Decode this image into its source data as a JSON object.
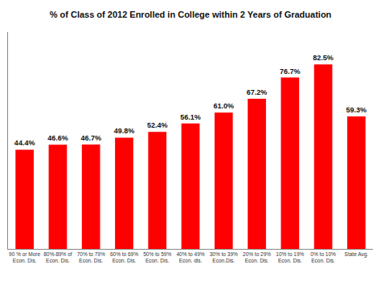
{
  "chart_data": {
    "type": "bar",
    "title": "% of Class of 2012 Enrolled in College within 2 Years of Graduation",
    "categories": [
      "90 % or More\nEcon. Dis.",
      "80%-89% of\nEcon. Dis.",
      "70% to 79%\nEcon. Dis.",
      "60% to 69%\nEcon. Dis.",
      "50% to 59%\nEcon. Dis.",
      "40% to 49%\nEcon. dis.",
      "30% to 39%\nEcon.Dis.",
      "20% to 29%\nEcon. Dis.",
      "10% to 19%\nEcon. Dis.",
      "0% to 10%\nEcon. Dis.",
      "State Avg."
    ],
    "values": [
      44.4,
      46.6,
      46.7,
      49.8,
      52.4,
      56.1,
      61.0,
      67.2,
      76.7,
      82.5,
      59.3
    ],
    "value_labels": [
      "44.4%",
      "46.6%",
      "46.7%",
      "49.8%",
      "52.4%",
      "56.1%",
      "61.0%",
      "67.2%",
      "76.7%",
      "82.5%",
      "59.3%"
    ],
    "data_labels": true,
    "color": "#FF0000",
    "ylim": [
      0,
      97
    ],
    "tick_labels": "x",
    "grid": false
  }
}
